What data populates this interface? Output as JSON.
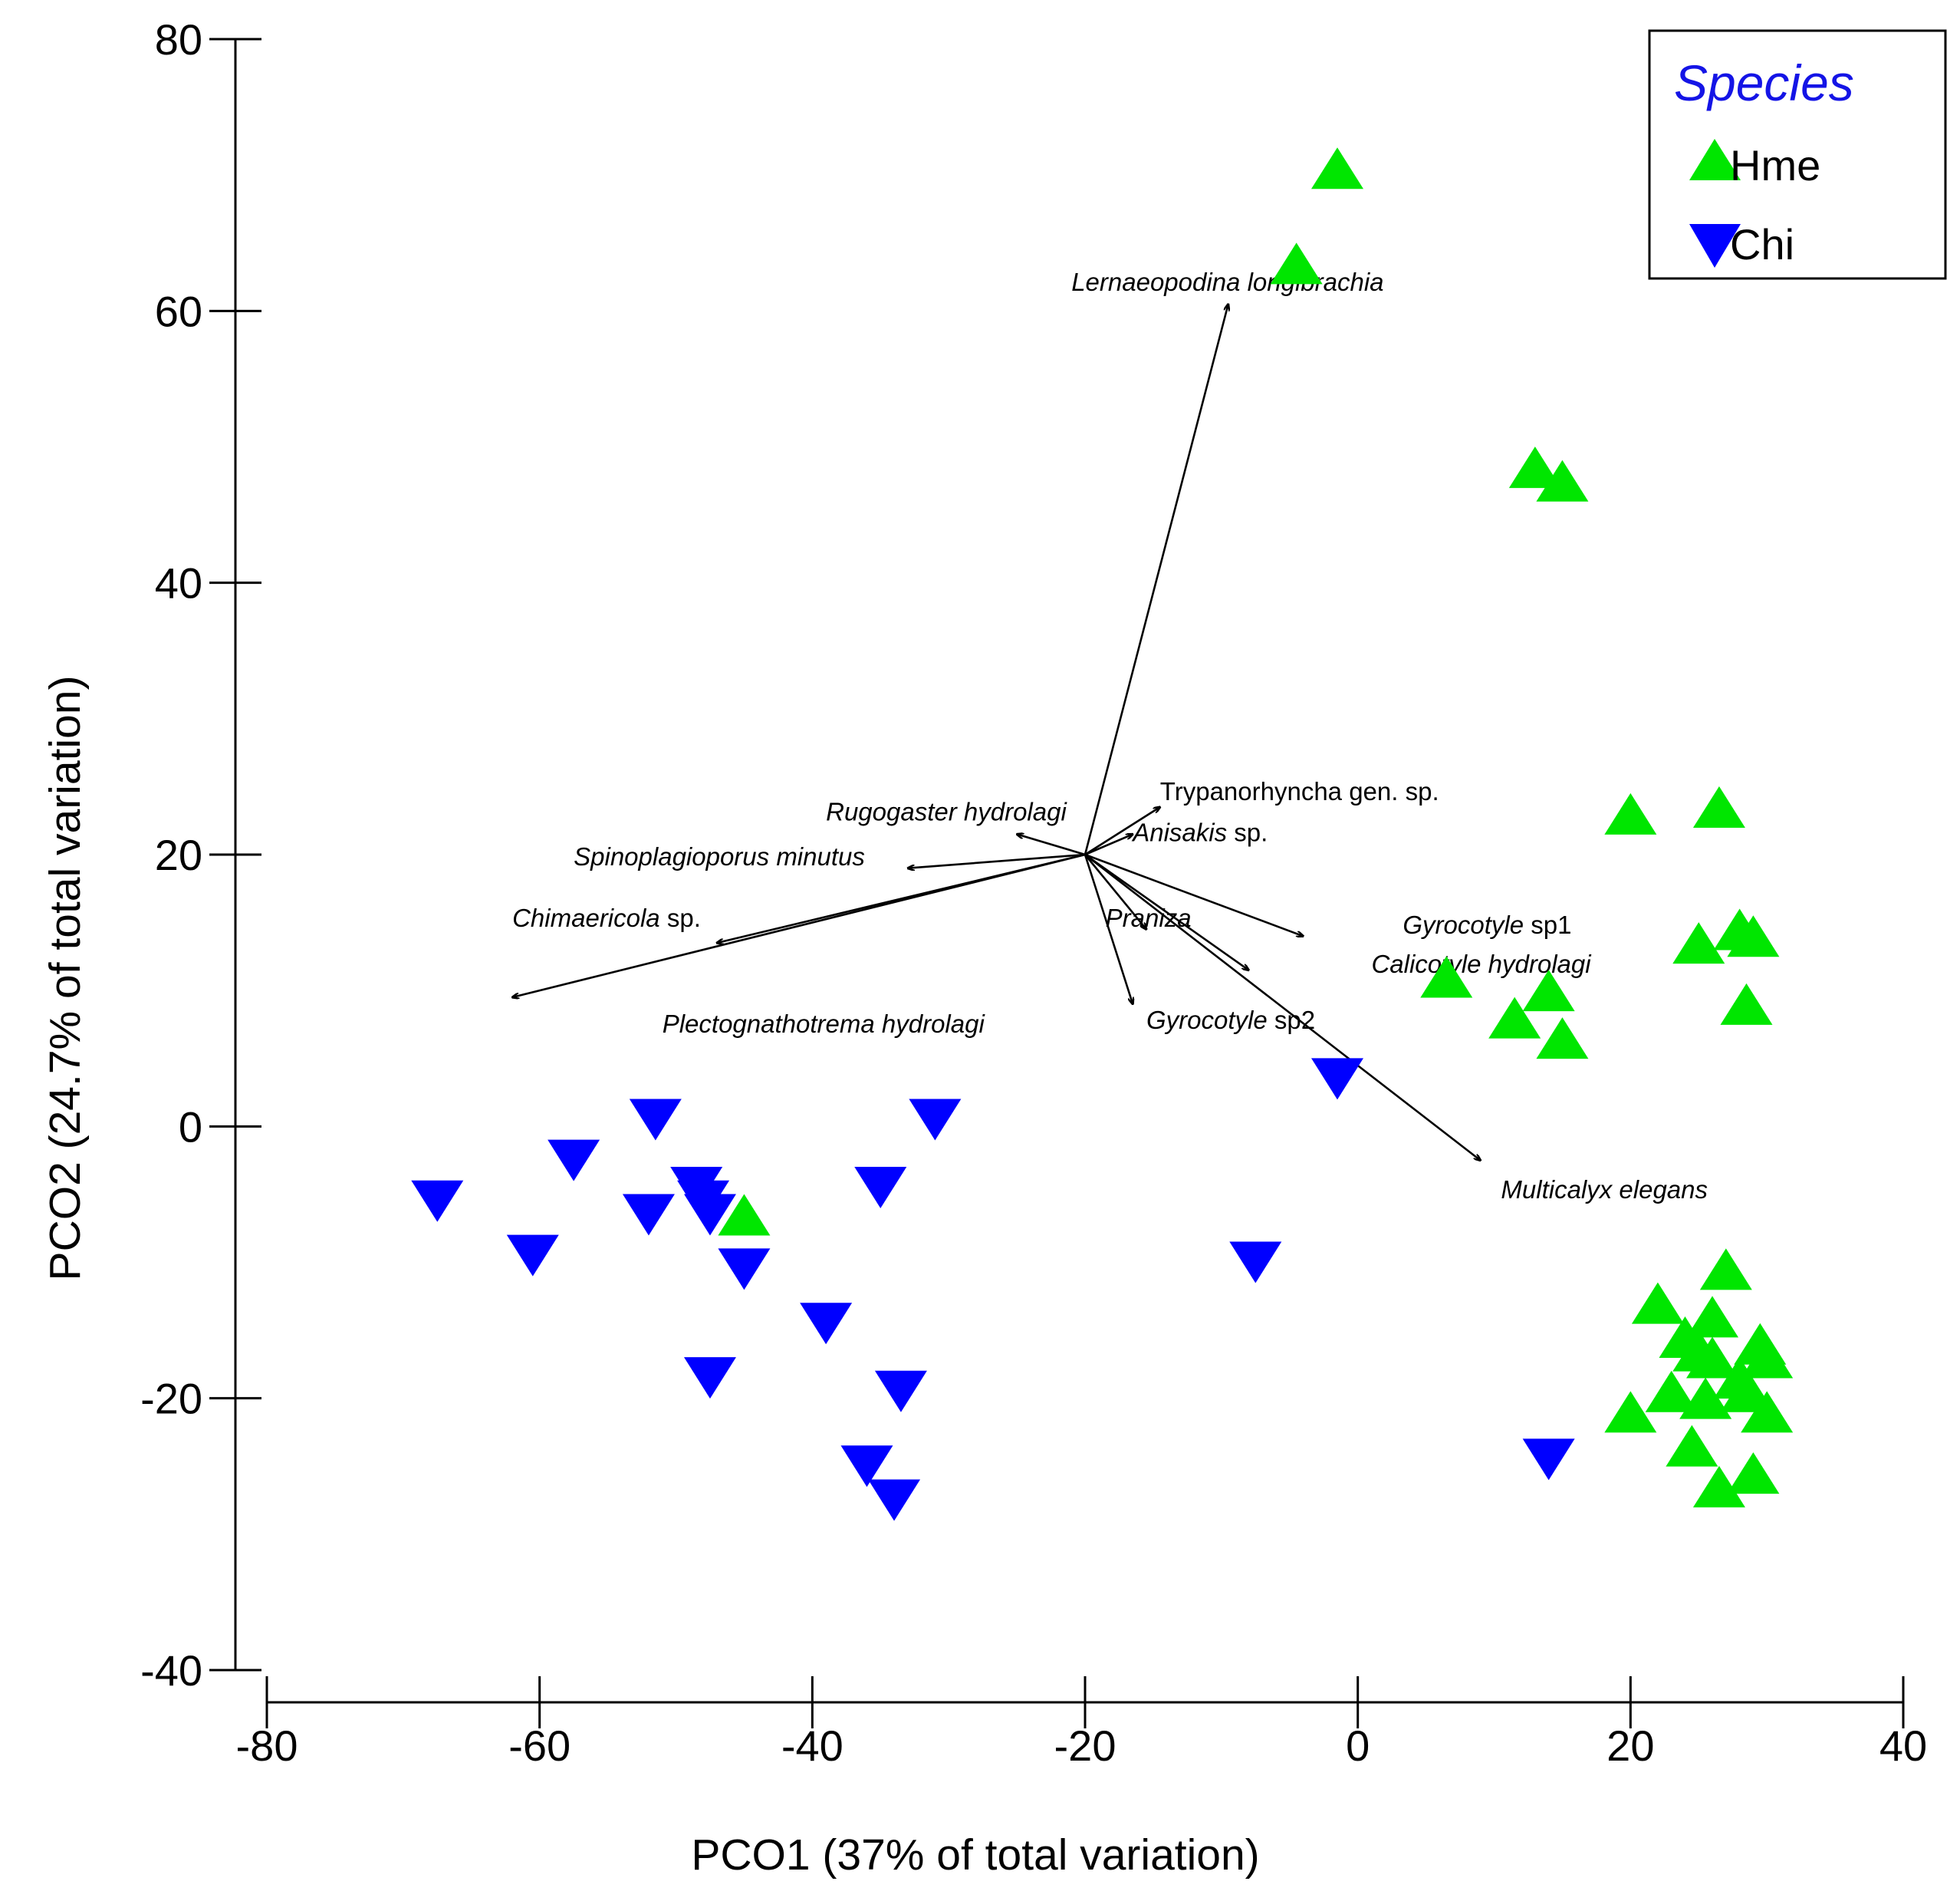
{
  "chart_data": {
    "type": "scatter",
    "xlabel": "PCO1 (37% of total variation)",
    "ylabel": "PCO2 (24.7% of total variation)",
    "xlim": [
      -80,
      40
    ],
    "ylim": [
      -40,
      80
    ],
    "xticks": [
      -80,
      -60,
      -40,
      -20,
      0,
      20,
      40
    ],
    "yticks": [
      -40,
      -20,
      0,
      20,
      40,
      60,
      80
    ],
    "grid": false,
    "legend": {
      "title": "Species",
      "title_color": "#1414e6",
      "placement": "top-right",
      "entries": [
        {
          "label": "Hme",
          "marker": "triangle-up",
          "color": "#00e600"
        },
        {
          "label": "Chi",
          "marker": "triangle-down",
          "color": "#0000ff"
        }
      ]
    },
    "series": [
      {
        "name": "Hme",
        "marker": "triangle-up",
        "color": "#00e600",
        "points": [
          [
            -1.5,
            70.5
          ],
          [
            -4.5,
            63.5
          ],
          [
            13,
            48.5
          ],
          [
            15,
            47.5
          ],
          [
            20,
            23
          ],
          [
            26.5,
            23.5
          ],
          [
            25,
            13.5
          ],
          [
            28,
            14.5
          ],
          [
            29,
            14
          ],
          [
            28.5,
            9
          ],
          [
            6.5,
            11
          ],
          [
            11.5,
            8
          ],
          [
            14,
            10
          ],
          [
            15,
            6.5
          ],
          [
            -45,
            -6.5
          ],
          [
            27,
            -10.5
          ],
          [
            22,
            -13
          ],
          [
            26,
            -14
          ],
          [
            24,
            -15.5
          ],
          [
            25,
            -16.5
          ],
          [
            26,
            -17
          ],
          [
            29.5,
            -16
          ],
          [
            30,
            -17
          ],
          [
            28,
            -18.5
          ],
          [
            23,
            -19.5
          ],
          [
            25.5,
            -20
          ],
          [
            28.5,
            -19.5
          ],
          [
            30,
            -21
          ],
          [
            20,
            -21
          ],
          [
            24.5,
            -23.5
          ],
          [
            26.5,
            -26.5
          ],
          [
            29,
            -25.5
          ]
        ]
      },
      {
        "name": "Chi",
        "marker": "triangle-down",
        "color": "#0000ff",
        "points": [
          [
            -67.5,
            -5.5
          ],
          [
            -60.5,
            -9.5
          ],
          [
            -57.5,
            -2.5
          ],
          [
            -51.5,
            0.5
          ],
          [
            -52,
            -6.5
          ],
          [
            -48.5,
            -4.5
          ],
          [
            -48,
            -5.5
          ],
          [
            -47.5,
            -6.5
          ],
          [
            -45,
            -10.5
          ],
          [
            -47.5,
            -18.5
          ],
          [
            -31,
            0.5
          ],
          [
            -35,
            -4.5
          ],
          [
            -39,
            -14.5
          ],
          [
            -33.5,
            -19.5
          ],
          [
            -36,
            -25
          ],
          [
            -34,
            -27.5
          ],
          [
            -1.5,
            3.5
          ],
          [
            -7.5,
            -10
          ],
          [
            14,
            -24.5
          ]
        ]
      }
    ],
    "vectors": {
      "origin": [
        -20,
        20
      ],
      "items": [
        {
          "label": "Lernaeopodina longibrachia",
          "italic": "Lernaeopodina longibrachia",
          "roman": "",
          "end": [
            -9.5,
            60.5
          ],
          "label_anchor": [
            -21,
            61.5
          ]
        },
        {
          "label": "Trypanorhyncha gen. sp.",
          "italic": "",
          "roman": "Trypanorhyncha gen. sp.",
          "end": [
            -14.5,
            23.5
          ],
          "label_anchor": [
            -14.5,
            24
          ]
        },
        {
          "label": "Anisakis sp.",
          "italic": "Anisakis",
          "roman": " sp.",
          "end": [
            -16.5,
            21.5
          ],
          "label_anchor": [
            -16.5,
            21
          ]
        },
        {
          "label": "Rugogaster hydrolagi",
          "italic": "Rugogaster hydrolagi",
          "roman": "",
          "end": [
            -25,
            21.5
          ],
          "label_anchor": [
            -39,
            22.5
          ]
        },
        {
          "label": "Spinoplagioporus minutus",
          "italic": "Spinoplagioporus minutus",
          "roman": "",
          "end": [
            -33,
            19
          ],
          "label_anchor": [
            -57.5,
            19.2
          ]
        },
        {
          "label": "Chimaericola sp.",
          "italic": "Chimaericola",
          "roman": " sp.",
          "end": [
            -47,
            13.5
          ],
          "label_anchor": [
            -62,
            14.7
          ]
        },
        {
          "label": "Plectognathotrema hydrolagi",
          "italic": "Plectognathotrema hydrolagi",
          "roman": "",
          "end": [
            -62,
            9.5
          ],
          "label_anchor": [
            -51,
            6.9
          ]
        },
        {
          "label": "Praniza",
          "italic": "Praniza",
          "roman": "",
          "end": [
            -15.5,
            14.5
          ],
          "label_anchor": [
            -18.5,
            14.7
          ]
        },
        {
          "label": "Gyrocotyle sp2",
          "italic": "Gyrocotyle",
          "roman": " sp2",
          "end": [
            -16.5,
            9
          ],
          "label_anchor": [
            -15.5,
            7.2
          ]
        },
        {
          "label": "Gyrocotyle sp1",
          "italic": "Gyrocotyle",
          "roman": " sp1",
          "end": [
            -4,
            14
          ],
          "label_anchor": [
            3.3,
            14.2
          ]
        },
        {
          "label": "Calicotyle hydrolagi",
          "italic": "Calicotyle hydrolagi",
          "roman": "",
          "end": [
            -8,
            11.5
          ],
          "label_anchor": [
            1,
            11.3
          ]
        },
        {
          "label": "Multicalyx elegans",
          "italic": "Multicalyx elegans",
          "roman": "",
          "end": [
            9,
            -2.5
          ],
          "label_anchor": [
            10.5,
            -5.3
          ]
        }
      ]
    }
  }
}
